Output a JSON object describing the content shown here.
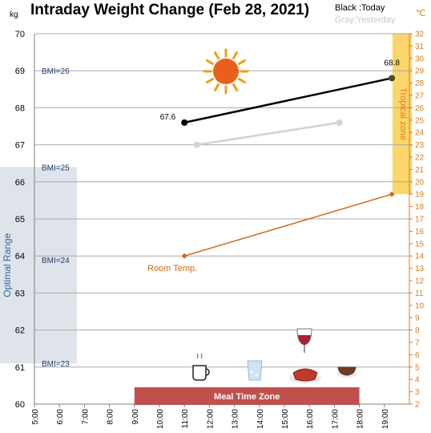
{
  "chart_data": {
    "type": "line",
    "title": "Intraday Weight Change (Feb 28, 2021)",
    "left_unit": "kg",
    "right_unit": "℃",
    "legend": {
      "today": "Black :Today",
      "yesterday": "Gray:Yesterday"
    },
    "x_ticks": [
      "5:00",
      "6:00",
      "7:00",
      "8:00",
      "9:00",
      "10:00",
      "11:00",
      "12:00",
      "13:00",
      "14:00",
      "15:00",
      "16:00",
      "17:00",
      "18:00",
      "19:00"
    ],
    "xlim": [
      5,
      20
    ],
    "ylim_weight": [
      60,
      70
    ],
    "ylim_temp": [
      2,
      32
    ],
    "series": [
      {
        "name": "Today",
        "color": "#000000",
        "points": [
          {
            "x": 11.0,
            "y": 67.6
          },
          {
            "x": 19.3,
            "y": 68.8
          }
        ],
        "labels": [
          "67.6",
          "68.8"
        ]
      },
      {
        "name": "Yesterday",
        "color": "#d3d3d3",
        "points": [
          {
            "x": 11.5,
            "y": 67.0
          },
          {
            "x": 17.2,
            "y": 67.6
          }
        ]
      },
      {
        "name": "Room Temp.",
        "axis": "temperature",
        "color": "#d2691e",
        "points": [
          {
            "x": 11.0,
            "y": 14
          },
          {
            "x": 19.3,
            "y": 19
          }
        ]
      }
    ],
    "bmi_labels": [
      {
        "text": "BMI=26",
        "y": 69.0
      },
      {
        "text": "BMI=25",
        "y": 66.4
      },
      {
        "text": "BMI=24",
        "y": 63.9
      },
      {
        "text": "BMI=23",
        "y": 61.1
      }
    ],
    "optimal_range": {
      "label": "Optimal Range",
      "y": [
        61.1,
        66.4
      ]
    },
    "tropical_zone": {
      "label": "Tropical zone",
      "temp_range": [
        19,
        32
      ]
    },
    "meal_time_zone": {
      "label": "Meal Time Zone",
      "x": [
        9.0,
        18.0
      ]
    },
    "icons": [
      "sun-icon",
      "coffee-cup-icon",
      "water-glass-icon",
      "steak-icon",
      "wine-glass-icon",
      "soup-bowl-icon"
    ],
    "room_temp_label": "Room Temp.",
    "grid": true
  }
}
